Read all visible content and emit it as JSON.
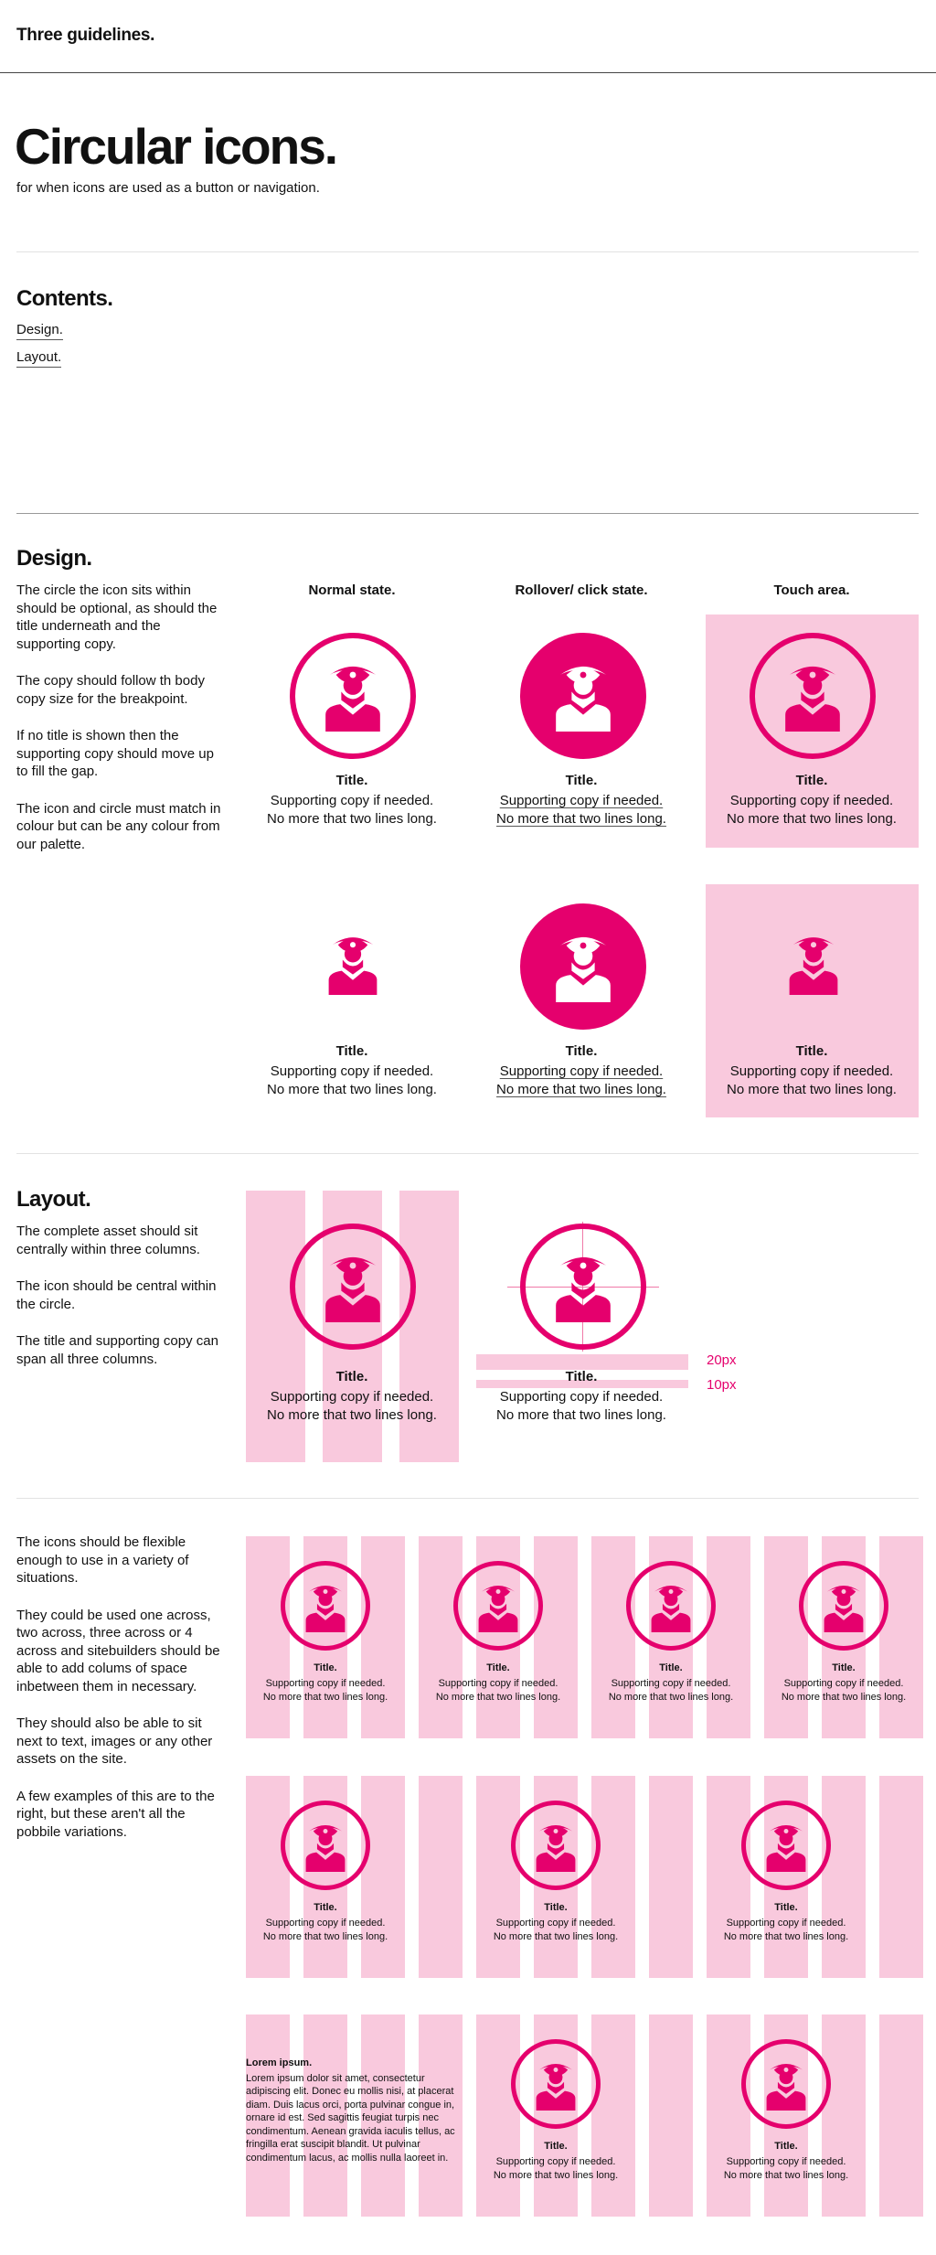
{
  "header": {
    "title": "Three guidelines."
  },
  "hero": {
    "title": "Circular icons.",
    "subtitle": "for when icons are used as a button or navigation."
  },
  "contents": {
    "title": "Contents.",
    "links": [
      "Design.",
      "Layout."
    ]
  },
  "design": {
    "title": "Design.",
    "paragraphs": [
      "The circle the icon sits within should be optional, as should the title underneath and the supporting copy.",
      "The copy should follow th body copy size for the breakpoint.",
      "If no title is shown then the supporting copy should move up to fill the gap.",
      "The icon and circle must match in colour but can be any colour from our palette."
    ],
    "columns": [
      "Normal state.",
      "Rollover/ click state.",
      "Touch area."
    ]
  },
  "layout": {
    "title": "Layout.",
    "paragraphs": [
      "The complete asset should sit centrally within three columns.",
      "The icon should be central within the circle.",
      "The title and supporting copy can span all three columns."
    ],
    "spacing": [
      "20px",
      "10px"
    ]
  },
  "flex": {
    "paragraphs": [
      "The icons should be flexible enough to use in a variety of situations.",
      "They could be used one across, two across, three across or 4 across and sitebuilders should be able to add colums of space inbetween them in necessary.",
      "They should also be able to sit next to text, images or any other assets on the site.",
      "A few examples of this are to the right, but these aren't all the pobbile variations."
    ],
    "lorem_title": "Lorem ipsum.",
    "lorem_body": "Lorem ipsum dolor sit amet, consectetur adipiscing elit. Donec eu mollis nisi, at placerat diam. Duis lacus orci, porta pulvinar congue in, ornare id est. Sed sagittis feugiat turpis nec condimentum. Aenean gravida iaculis tellus, ac fringilla erat suscipit blandit. Ut pulvinar condimentum lacus, ac mollis nulla laoreet in."
  },
  "asset": {
    "title": "Title.",
    "copy_line1": "Supporting copy if needed.",
    "copy_line2": "No more that two lines long."
  },
  "colors": {
    "accent": "#e5006d",
    "pink_light": "#f9c9dd"
  },
  "icon_name": "pirate-icon"
}
